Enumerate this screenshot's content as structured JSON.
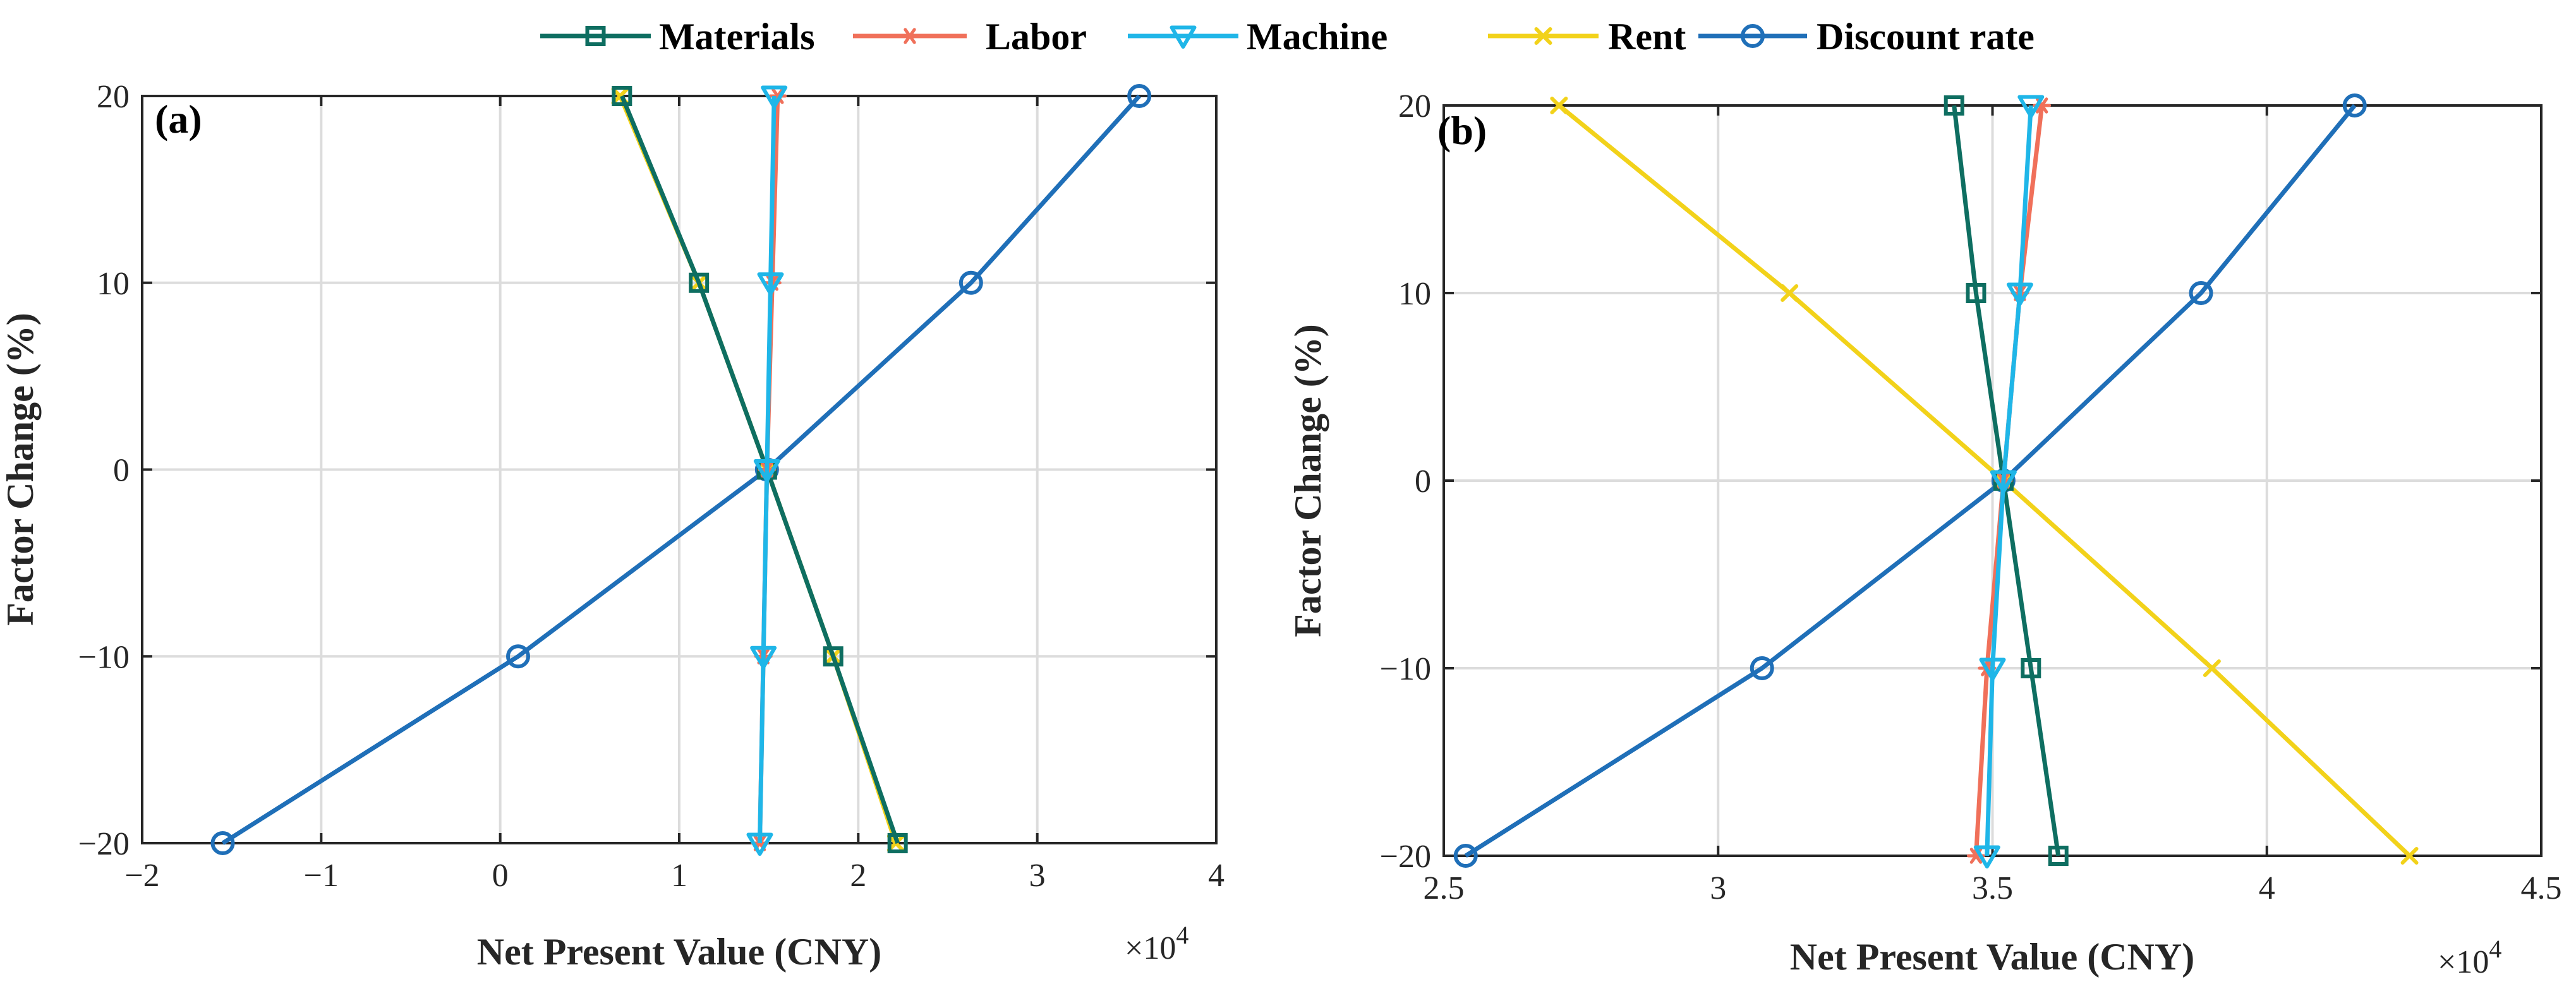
{
  "legend": [
    {
      "name": "Materials",
      "color": "#0E6E61",
      "marker": "square"
    },
    {
      "name": "Labor",
      "color": "#F0705A",
      "marker": "asterisk"
    },
    {
      "name": "Machine",
      "color": "#1FB6E8",
      "marker": "triangle-down"
    },
    {
      "name": "Rent",
      "color": "#F2D21A",
      "marker": "x"
    },
    {
      "name": "Discount rate",
      "color": "#1F6FB8",
      "marker": "circle"
    }
  ],
  "chart_data": [
    {
      "type": "line",
      "panel_label": "(a)",
      "xlabel": "Net Present Value (CNY)",
      "ylabel": "Factor Change (%)",
      "x_multiplier": "×10^4",
      "x_multiplier_parts": {
        "base": "×10",
        "exp": "4"
      },
      "xlim": [
        -2,
        4
      ],
      "ylim": [
        -20,
        20
      ],
      "xticks": [
        -2,
        -1,
        0,
        1,
        2,
        3,
        4
      ],
      "xtick_labels": [
        "−2",
        "−1",
        "0",
        "1",
        "2",
        "3",
        "4"
      ],
      "yticks": [
        -20,
        -10,
        0,
        10,
        20
      ],
      "ytick_labels": [
        "−20",
        "−10",
        "0",
        "10",
        "20"
      ],
      "grid": true,
      "series": [
        {
          "name": "Materials",
          "x": [
            2.22,
            1.86,
            1.49,
            1.11,
            0.68
          ],
          "y": [
            -20,
            -10,
            0,
            10,
            20
          ]
        },
        {
          "name": "Labor",
          "x": [
            1.45,
            1.47,
            1.49,
            1.52,
            1.55
          ],
          "y": [
            -20,
            -10,
            0,
            10,
            20
          ]
        },
        {
          "name": "Machine",
          "x": [
            1.45,
            1.47,
            1.49,
            1.51,
            1.53
          ],
          "y": [
            -20,
            -10,
            0,
            10,
            20
          ]
        },
        {
          "name": "Rent",
          "x": [
            2.21,
            1.86,
            1.49,
            1.11,
            0.67
          ],
          "y": [
            -20,
            -10,
            0,
            10,
            20
          ]
        },
        {
          "name": "Discount rate",
          "x": [
            -1.55,
            0.1,
            1.49,
            2.63,
            3.57
          ],
          "y": [
            -20,
            -10,
            0,
            10,
            20
          ]
        }
      ]
    },
    {
      "type": "line",
      "panel_label": "(b)",
      "xlabel": "Net Present Value (CNY)",
      "ylabel": "Factor Change (%)",
      "x_multiplier": "×10^4",
      "x_multiplier_parts": {
        "base": "×10",
        "exp": "4"
      },
      "xlim": [
        2.5,
        4.5
      ],
      "ylim": [
        -20,
        20
      ],
      "xticks": [
        2.5,
        3,
        3.5,
        4,
        4.5
      ],
      "xtick_labels": [
        "2.5",
        "3",
        "3.5",
        "4",
        "4.5"
      ],
      "yticks": [
        -20,
        -10,
        0,
        10,
        20
      ],
      "ytick_labels": [
        "−20",
        "−10",
        "0",
        "10",
        "20"
      ],
      "grid": true,
      "series": [
        {
          "name": "Materials",
          "x": [
            3.62,
            3.57,
            3.52,
            3.47,
            3.43
          ],
          "y": [
            -20,
            -10,
            0,
            10,
            20
          ]
        },
        {
          "name": "Labor",
          "x": [
            3.47,
            3.49,
            3.52,
            3.55,
            3.59
          ],
          "y": [
            -20,
            -10,
            0,
            10,
            20
          ]
        },
        {
          "name": "Machine",
          "x": [
            3.49,
            3.5,
            3.52,
            3.55,
            3.57
          ],
          "y": [
            -20,
            -10,
            0,
            10,
            20
          ]
        },
        {
          "name": "Rent",
          "x": [
            4.26,
            3.9,
            3.52,
            3.13,
            2.71
          ],
          "y": [
            -20,
            -10,
            0,
            10,
            20
          ]
        },
        {
          "name": "Discount rate",
          "x": [
            2.54,
            3.08,
            3.52,
            3.88,
            4.16
          ],
          "y": [
            -20,
            -10,
            0,
            10,
            20
          ]
        }
      ]
    }
  ]
}
